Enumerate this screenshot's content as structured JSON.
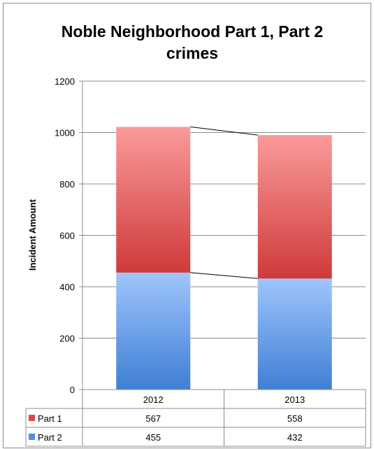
{
  "chart_data": {
    "type": "bar",
    "stacked": true,
    "title_lines": [
      "Noble Neighborhood Part 1, Part 2",
      "crimes"
    ],
    "ylabel": "Incident Amount",
    "xlabel": "",
    "ylim": [
      0,
      1200
    ],
    "yticks": [
      0,
      200,
      400,
      600,
      800,
      1000,
      1200
    ],
    "grid": true,
    "categories": [
      "2012",
      "2013"
    ],
    "series": [
      {
        "name": "Part 2",
        "values": [
          455,
          432
        ],
        "color_top": "#9fc5fd",
        "color_bottom": "#3f7fd4"
      },
      {
        "name": "Part 1",
        "values": [
          567,
          558
        ],
        "color_top": "#fb9a9a",
        "color_bottom": "#cf3a3a"
      }
    ],
    "series_lines": true,
    "data_table": {
      "rows": [
        {
          "name": "Part 1",
          "values": [
            "567",
            "558"
          ],
          "color": "#e04848"
        },
        {
          "name": "Part 2",
          "values": [
            "455",
            "432"
          ],
          "color": "#4f8ee0"
        }
      ]
    }
  }
}
